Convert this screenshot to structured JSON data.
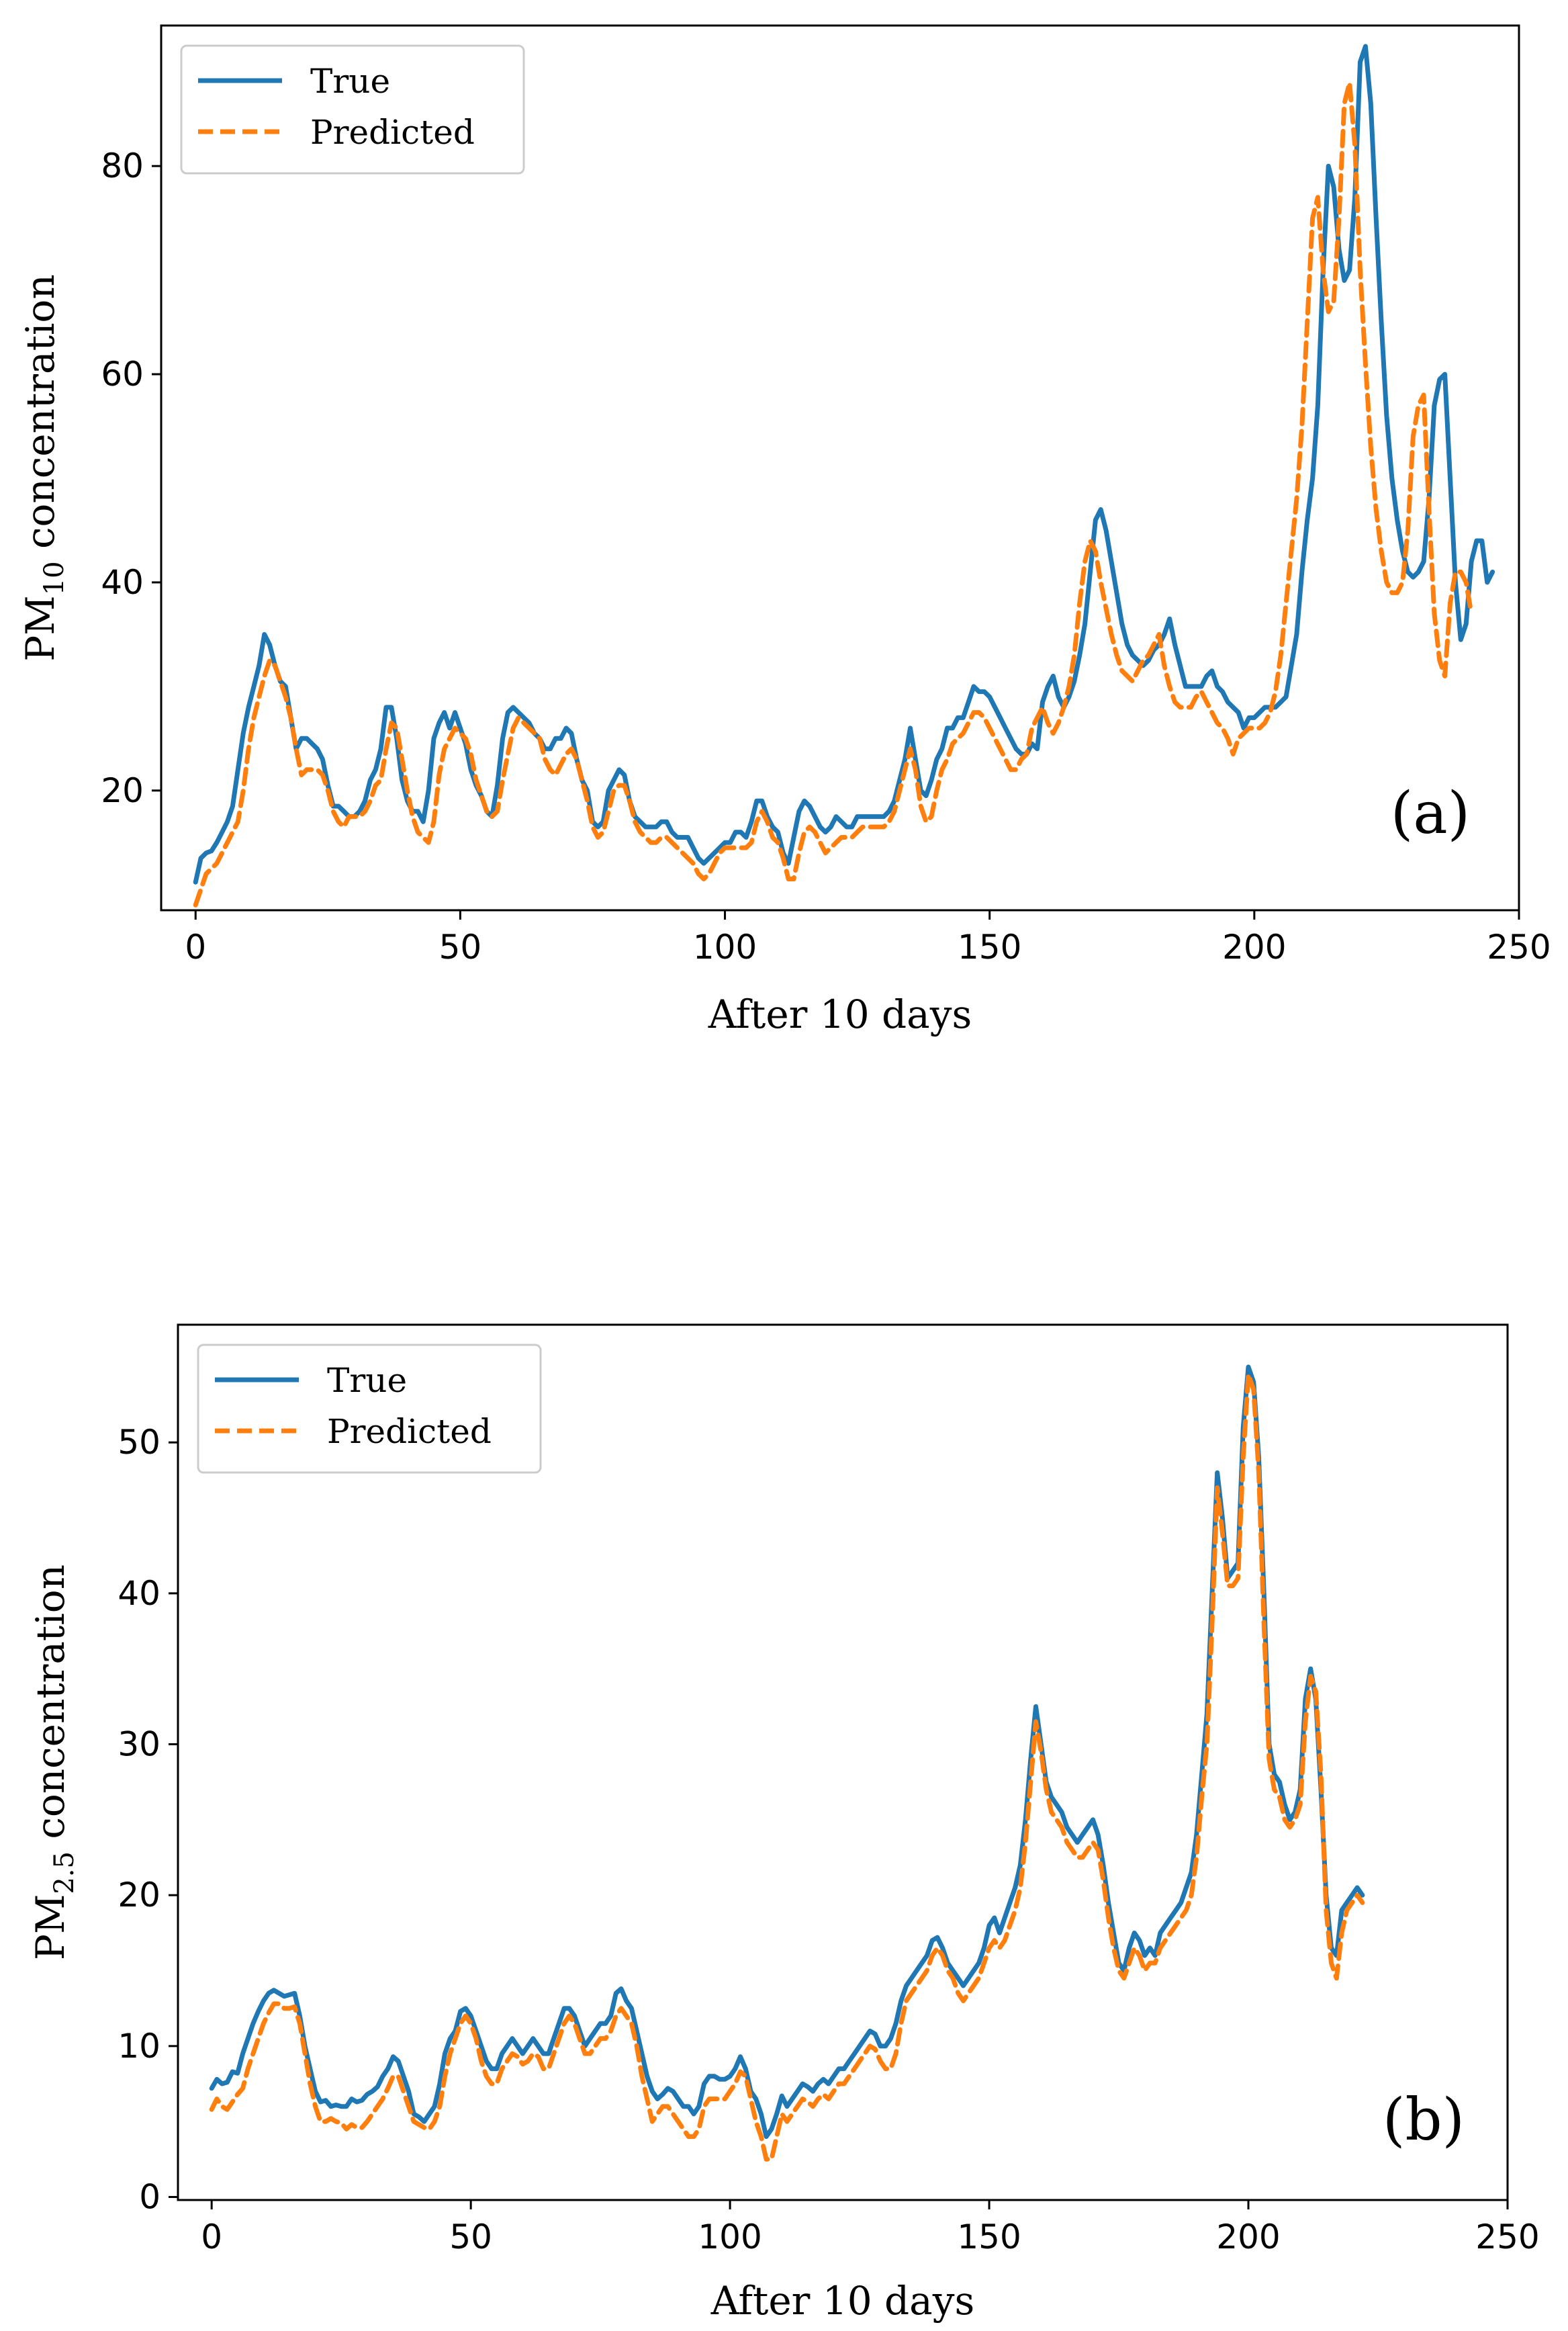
{
  "chart_data": [
    {
      "type": "line",
      "panel_label": "(a)",
      "xlabel": "After 10 days",
      "ylabel_main": "PM",
      "ylabel_sub": "10",
      "ylabel_rest": " concentration",
      "xlim": [
        -6.5,
        250
      ],
      "ylim": [
        8.5,
        93.5
      ],
      "xticks": [
        0,
        50,
        100,
        150,
        200,
        250
      ],
      "yticks": [
        20,
        40,
        60,
        80
      ],
      "legend": [
        "True",
        "Predicted"
      ],
      "legend_position": "top-left",
      "colors": {
        "true": "#1f77b4",
        "predicted": "#ff7f0e"
      },
      "series": [
        {
          "name": "True",
          "values": [
            11.2,
            13.5,
            14.0,
            14.2,
            15.0,
            16.0,
            17.0,
            18.5,
            22.0,
            25.5,
            28.0,
            30.0,
            32.0,
            35.0,
            34.0,
            32.0,
            30.5,
            30.0,
            27.0,
            24.0,
            25.0,
            25.0,
            24.5,
            24.0,
            23.0,
            20.5,
            18.5,
            18.5,
            18.0,
            17.5,
            17.5,
            18.0,
            19.0,
            21.0,
            22.0,
            24.0,
            28.0,
            28.0,
            25.0,
            21.0,
            19.0,
            18.0,
            18.0,
            17.0,
            20.0,
            25.0,
            26.5,
            27.5,
            26.0,
            27.5,
            26.0,
            24.5,
            22.0,
            20.5,
            19.5,
            18.0,
            17.5,
            20.5,
            25.0,
            27.5,
            28.0,
            27.5,
            27.0,
            26.5,
            25.5,
            25.0,
            24.0,
            24.0,
            25.0,
            25.0,
            26.0,
            25.5,
            23.0,
            21.0,
            20.0,
            17.0,
            16.5,
            17.0,
            20.0,
            21.0,
            22.0,
            21.5,
            19.0,
            17.5,
            17.0,
            16.5,
            16.5,
            16.5,
            17.0,
            17.0,
            16.0,
            15.5,
            15.5,
            15.5,
            14.5,
            13.5,
            13.0,
            13.5,
            14.0,
            14.5,
            15.0,
            15.0,
            16.0,
            16.0,
            15.5,
            17.0,
            19.0,
            19.0,
            17.5,
            16.5,
            16.0,
            14.0,
            13.0,
            15.5,
            18.0,
            19.0,
            18.5,
            17.5,
            16.5,
            16.0,
            16.5,
            17.5,
            17.0,
            16.5,
            16.5,
            17.5,
            17.5,
            17.5,
            17.5,
            17.5,
            17.5,
            18.0,
            19.0,
            21.0,
            23.0,
            26.0,
            23.0,
            20.0,
            19.5,
            21.0,
            23.0,
            24.0,
            26.0,
            26.0,
            27.0,
            27.0,
            28.5,
            30.0,
            29.5,
            29.5,
            29.0,
            28.0,
            27.0,
            26.0,
            25.0,
            24.0,
            23.5,
            23.5,
            24.5,
            24.0,
            28.5,
            30.0,
            31.0,
            29.0,
            28.0,
            29.0,
            30.5,
            33.0,
            36.0,
            41.0,
            46.0,
            47.0,
            45.0,
            42.0,
            39.0,
            36.0,
            34.0,
            33.0,
            32.5,
            32.0,
            32.5,
            33.5,
            34.0,
            35.0,
            36.5,
            34.0,
            32.0,
            30.0,
            30.0,
            30.0,
            30.0,
            31.0,
            31.5,
            30.0,
            29.5,
            28.5,
            28.0,
            27.5,
            26.0,
            27.0,
            27.0,
            27.5,
            28.0,
            28.0,
            28.0,
            28.5,
            29.0,
            32.0,
            35.0,
            41.0,
            46.0,
            50.0,
            57.0,
            70.0,
            80.0,
            78.0,
            72.0,
            69.0,
            70.0,
            77.0,
            90.0,
            91.5,
            86.0,
            75.0,
            65.0,
            56.0,
            50.0,
            46.0,
            43.0,
            41.0,
            40.5,
            41.0,
            42.0,
            48.0,
            57.0,
            59.5,
            60.0,
            50.0,
            40.0,
            34.5,
            36.0,
            42.0,
            44.0,
            44.0,
            40.0,
            41.0
          ]
        },
        {
          "name": "Predicted",
          "values": [
            9.0,
            10.5,
            12.0,
            12.5,
            13.0,
            14.0,
            15.0,
            16.0,
            17.0,
            20.0,
            24.0,
            27.0,
            29.0,
            31.0,
            32.5,
            32.0,
            30.5,
            29.0,
            27.0,
            24.0,
            21.5,
            22.0,
            22.0,
            22.0,
            21.5,
            20.0,
            18.0,
            17.0,
            16.5,
            17.5,
            17.5,
            17.5,
            18.0,
            19.0,
            20.5,
            21.0,
            24.0,
            26.5,
            26.0,
            23.0,
            20.0,
            17.5,
            16.0,
            15.5,
            15.0,
            17.0,
            21.5,
            24.0,
            25.0,
            26.0,
            25.5,
            25.0,
            23.5,
            21.0,
            19.5,
            18.0,
            17.5,
            18.0,
            21.0,
            23.5,
            26.0,
            27.0,
            26.5,
            26.0,
            25.5,
            25.0,
            23.0,
            22.0,
            21.5,
            22.5,
            23.5,
            24.0,
            23.0,
            21.0,
            19.0,
            16.5,
            15.5,
            16.0,
            18.0,
            20.0,
            20.5,
            20.5,
            19.0,
            17.0,
            16.0,
            15.5,
            15.0,
            15.0,
            15.5,
            15.5,
            15.0,
            14.5,
            14.0,
            13.5,
            13.0,
            12.0,
            11.5,
            12.0,
            13.0,
            14.0,
            14.5,
            14.5,
            14.5,
            14.5,
            14.5,
            15.0,
            17.0,
            18.0,
            17.0,
            15.5,
            15.0,
            13.5,
            11.5,
            11.5,
            14.0,
            16.0,
            16.5,
            16.0,
            15.0,
            14.0,
            14.5,
            15.0,
            15.5,
            15.5,
            15.5,
            16.0,
            16.5,
            16.5,
            16.5,
            16.5,
            16.5,
            17.0,
            18.0,
            20.0,
            22.0,
            24.0,
            22.0,
            18.5,
            17.0,
            17.5,
            20.0,
            22.0,
            23.0,
            24.5,
            25.0,
            25.5,
            26.5,
            27.5,
            27.5,
            27.0,
            26.0,
            25.0,
            24.0,
            23.0,
            22.0,
            22.0,
            23.0,
            23.5,
            26.0,
            27.0,
            28.0,
            26.5,
            25.5,
            26.5,
            28.0,
            30.0,
            33.0,
            38.0,
            42.0,
            44.0,
            43.0,
            40.0,
            37.5,
            35.0,
            33.0,
            31.5,
            31.0,
            30.5,
            31.5,
            32.5,
            33.0,
            34.0,
            35.0,
            32.0,
            30.0,
            28.5,
            28.0,
            28.0,
            28.0,
            29.0,
            29.5,
            28.5,
            27.5,
            26.5,
            26.0,
            25.0,
            23.5,
            25.0,
            25.5,
            26.0,
            26.0,
            26.0,
            26.5,
            27.5,
            29.5,
            33.0,
            38.0,
            43.0,
            48.0,
            55.0,
            65.0,
            75.0,
            77.0,
            70.0,
            66.0,
            67.0,
            75.0,
            86.0,
            88.0,
            82.0,
            70.0,
            61.0,
            53.0,
            47.0,
            43.0,
            40.0,
            39.0,
            39.0,
            40.0,
            45.0,
            54.0,
            57.0,
            58.0,
            47.0,
            37.0,
            32.5,
            31.0,
            38.0,
            41.0,
            41.0,
            40.0,
            37.0
          ]
        }
      ]
    },
    {
      "type": "line",
      "panel_label": "(b)",
      "xlabel": "After 10 days",
      "ylabel_main": "PM",
      "ylabel_sub": "2.5",
      "ylabel_rest": " concentration",
      "xlim": [
        -6.5,
        250
      ],
      "ylim": [
        -0.2,
        57.8
      ],
      "xticks": [
        0,
        50,
        100,
        150,
        200,
        250
      ],
      "yticks": [
        0,
        10,
        20,
        30,
        40,
        50
      ],
      "legend": [
        "True",
        "Predicted"
      ],
      "legend_position": "top-left",
      "colors": {
        "true": "#1f77b4",
        "predicted": "#ff7f0e"
      },
      "series": [
        {
          "name": "True",
          "values": [
            7.2,
            7.8,
            7.5,
            7.6,
            8.3,
            8.2,
            9.5,
            10.5,
            11.5,
            12.3,
            13.0,
            13.5,
            13.7,
            13.5,
            13.3,
            13.4,
            13.5,
            12.0,
            10.0,
            8.5,
            7.0,
            6.3,
            6.4,
            6.0,
            6.1,
            6.0,
            6.0,
            6.5,
            6.3,
            6.4,
            6.8,
            7.0,
            7.3,
            8.0,
            8.5,
            9.3,
            9.0,
            8.0,
            7.0,
            5.5,
            5.3,
            5.0,
            5.5,
            6.0,
            7.5,
            9.5,
            10.5,
            11.0,
            12.3,
            12.5,
            12.0,
            11.0,
            10.0,
            9.0,
            8.5,
            8.5,
            9.5,
            10.0,
            10.5,
            10.0,
            9.5,
            10.0,
            10.5,
            10.0,
            9.5,
            9.5,
            10.5,
            11.5,
            12.5,
            12.5,
            12.0,
            11.0,
            10.0,
            10.5,
            11.0,
            11.5,
            11.5,
            12.0,
            13.5,
            13.8,
            13.0,
            12.5,
            11.0,
            9.5,
            8.0,
            7.0,
            6.5,
            6.8,
            7.2,
            7.0,
            6.5,
            6.0,
            6.0,
            5.5,
            6.0,
            7.5,
            8.0,
            8.0,
            7.8,
            7.8,
            8.0,
            8.5,
            9.3,
            8.5,
            7.0,
            6.5,
            5.5,
            4.0,
            4.5,
            5.5,
            6.7,
            6.0,
            6.5,
            7.0,
            7.5,
            7.3,
            7.0,
            7.5,
            7.8,
            7.5,
            8.0,
            8.5,
            8.5,
            9.0,
            9.5,
            10.0,
            10.5,
            11.0,
            10.8,
            10.0,
            10.0,
            10.5,
            11.5,
            13.0,
            14.0,
            14.5,
            15.0,
            15.5,
            16.0,
            17.0,
            17.2,
            16.5,
            15.5,
            15.0,
            14.5,
            14.0,
            14.5,
            15.0,
            15.5,
            16.5,
            18.0,
            18.5,
            17.5,
            18.5,
            19.5,
            20.5,
            22.0,
            25.0,
            29.0,
            32.5,
            30.0,
            27.5,
            26.5,
            26.0,
            25.5,
            24.5,
            24.0,
            23.5,
            24.0,
            24.5,
            25.0,
            24.0,
            22.0,
            19.5,
            17.5,
            15.5,
            15.0,
            16.5,
            17.5,
            17.0,
            16.0,
            16.5,
            16.0,
            17.5,
            18.0,
            18.5,
            19.0,
            19.5,
            20.5,
            21.5,
            24.0,
            28.0,
            32.0,
            40.0,
            48.0,
            45.0,
            41.0,
            41.5,
            42.0,
            51.0,
            55.0,
            54.0,
            49.0,
            40.0,
            30.0,
            28.0,
            27.5,
            26.0,
            25.0,
            25.5,
            27.0,
            33.0,
            35.0,
            33.0,
            27.0,
            20.0,
            16.5,
            16.0,
            19.0,
            19.5,
            20.0,
            20.5,
            20.0
          ]
        },
        {
          "name": "Predicted",
          "values": [
            5.8,
            6.5,
            6.0,
            5.8,
            6.3,
            6.8,
            7.2,
            8.5,
            9.5,
            10.5,
            11.5,
            12.2,
            12.8,
            12.8,
            12.5,
            12.5,
            12.6,
            11.5,
            9.5,
            7.5,
            6.0,
            5.0,
            5.0,
            5.2,
            5.0,
            4.9,
            4.5,
            4.8,
            4.6,
            4.6,
            5.0,
            5.5,
            6.0,
            6.5,
            7.2,
            8.0,
            8.0,
            7.0,
            6.0,
            5.0,
            4.8,
            4.6,
            4.5,
            5.0,
            6.0,
            8.0,
            9.5,
            10.5,
            11.5,
            12.0,
            11.5,
            10.5,
            9.0,
            8.0,
            7.5,
            7.5,
            8.5,
            9.0,
            9.5,
            9.3,
            8.8,
            9.0,
            9.5,
            9.3,
            8.5,
            8.5,
            9.5,
            10.5,
            11.5,
            12.0,
            11.5,
            10.5,
            9.5,
            9.5,
            10.0,
            10.5,
            10.5,
            11.0,
            12.0,
            12.5,
            12.0,
            11.5,
            10.0,
            8.0,
            6.5,
            5.0,
            5.5,
            6.0,
            6.0,
            5.5,
            5.0,
            4.5,
            4.0,
            4.0,
            4.5,
            6.0,
            6.5,
            6.5,
            6.5,
            6.5,
            7.0,
            7.5,
            8.3,
            8.0,
            6.5,
            5.0,
            4.0,
            2.5,
            2.5,
            4.0,
            5.5,
            5.0,
            5.5,
            6.0,
            6.5,
            6.3,
            6.0,
            6.5,
            6.8,
            6.5,
            7.0,
            7.5,
            7.5,
            8.0,
            8.5,
            9.0,
            9.5,
            10.0,
            9.8,
            9.0,
            8.5,
            8.5,
            9.5,
            11.5,
            13.0,
            13.5,
            14.0,
            14.5,
            15.0,
            16.0,
            16.5,
            16.0,
            15.0,
            14.5,
            13.5,
            13.0,
            13.5,
            14.0,
            14.5,
            15.5,
            16.5,
            17.0,
            16.5,
            17.0,
            18.0,
            19.0,
            20.5,
            23.5,
            27.5,
            31.5,
            29.5,
            27.0,
            25.5,
            25.0,
            24.5,
            23.5,
            23.0,
            22.5,
            22.5,
            23.0,
            23.5,
            23.0,
            21.0,
            18.5,
            16.5,
            15.0,
            14.5,
            15.5,
            16.5,
            16.0,
            15.0,
            15.5,
            15.5,
            16.5,
            17.0,
            17.5,
            18.0,
            18.5,
            19.0,
            20.0,
            22.5,
            26.5,
            30.0,
            38.0,
            47.0,
            44.0,
            40.5,
            40.5,
            41.0,
            49.0,
            54.5,
            53.5,
            48.0,
            38.0,
            29.0,
            27.0,
            26.5,
            25.0,
            24.5,
            25.0,
            26.0,
            31.5,
            34.5,
            33.5,
            28.0,
            19.0,
            15.5,
            14.5,
            17.5,
            19.0,
            19.5,
            20.0,
            19.5
          ]
        }
      ]
    }
  ]
}
